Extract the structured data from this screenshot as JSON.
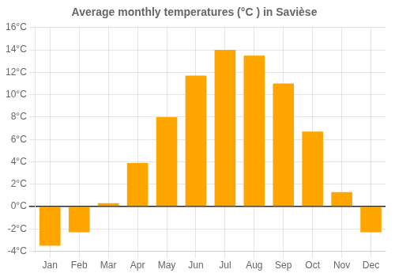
{
  "chart_data": {
    "type": "bar",
    "title": "Average monthly temperatures (°C ) in Savièse",
    "categories": [
      "Jan",
      "Feb",
      "Mar",
      "Apr",
      "May",
      "Jun",
      "Jul",
      "Aug",
      "Sep",
      "Oct",
      "Nov",
      "Dec"
    ],
    "values": [
      -3.5,
      -2.3,
      0.3,
      3.9,
      8.0,
      11.7,
      14.0,
      13.5,
      11.0,
      6.7,
      1.3,
      -2.3
    ],
    "color": "#FFA500",
    "ylim": [
      -4,
      16
    ],
    "yticks": [
      {
        "value": -4,
        "label": "-4°C"
      },
      {
        "value": -2,
        "label": "-2°C"
      },
      {
        "value": 0,
        "label": "0°C"
      },
      {
        "value": 2,
        "label": "2°C"
      },
      {
        "value": 4,
        "label": "4°C"
      },
      {
        "value": 6,
        "label": "6°C"
      },
      {
        "value": 8,
        "label": "8°C"
      },
      {
        "value": 10,
        "label": "10°C"
      },
      {
        "value": 12,
        "label": "12°C"
      },
      {
        "value": 14,
        "label": "14°C"
      },
      {
        "value": 16,
        "label": "16°C"
      }
    ],
    "grid": true
  }
}
